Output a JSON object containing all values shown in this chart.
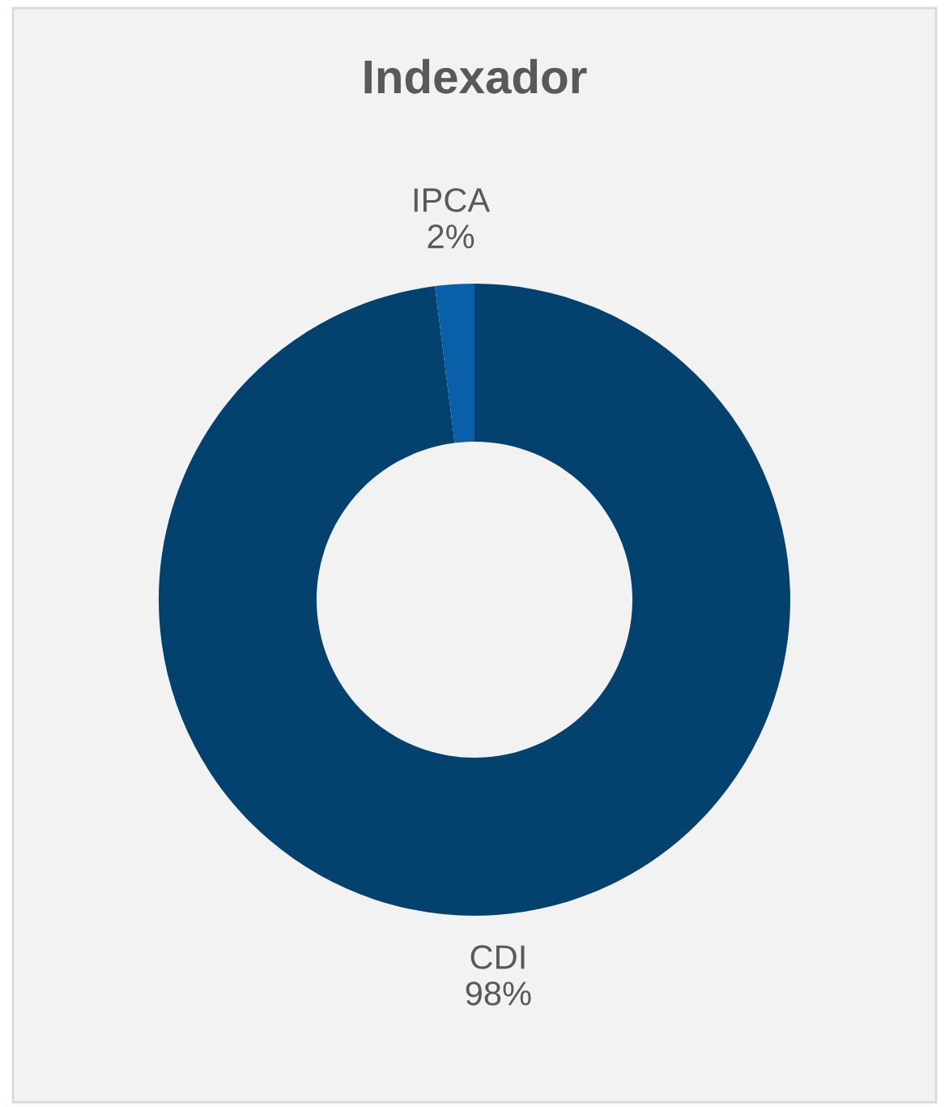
{
  "chart_data": {
    "type": "donut",
    "title": "Indexador",
    "categories": [
      "CDI",
      "IPCA"
    ],
    "values": [
      98,
      2
    ],
    "colors": [
      "#03426f",
      "#0a60a8"
    ],
    "value_labels": [
      "98%",
      "2%"
    ],
    "legend": false
  }
}
